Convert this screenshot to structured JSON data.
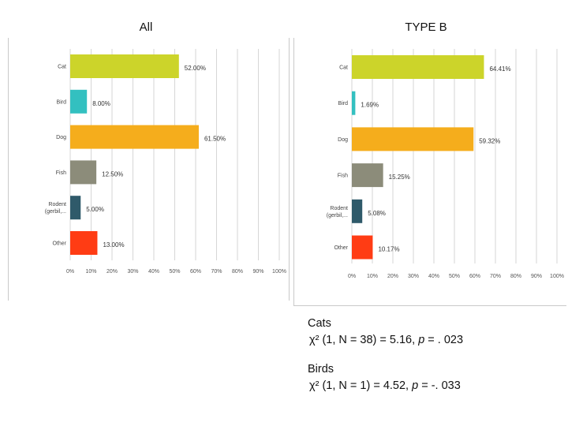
{
  "chart_data": [
    {
      "type": "bar",
      "orientation": "horizontal",
      "title": "All",
      "categories": [
        "Cat",
        "Bird",
        "Dog",
        "Fish",
        "Rodent (gerbil,...",
        "Other"
      ],
      "values": [
        52.0,
        8.0,
        61.5,
        12.5,
        5.0,
        13.0
      ],
      "value_labels": [
        "52.00%",
        "8.00%",
        "61.50%",
        "12.50%",
        "5.00%",
        "13.00%"
      ],
      "colors": [
        "#ccd42a",
        "#33c0c0",
        "#f5ad1c",
        "#8c8c7a",
        "#2f5a6a",
        "#ff3c14"
      ],
      "xlim": [
        0,
        100
      ],
      "xticks": [
        "0%",
        "10%",
        "20%",
        "30%",
        "40%",
        "50%",
        "60%",
        "70%",
        "80%",
        "90%",
        "100%"
      ],
      "grid": true
    },
    {
      "type": "bar",
      "orientation": "horizontal",
      "title": "TYPE B",
      "categories": [
        "Cat",
        "Bird",
        "Dog",
        "Fish",
        "Rodent (gerbil,...",
        "Other"
      ],
      "values": [
        64.41,
        1.69,
        59.32,
        15.25,
        5.08,
        10.17
      ],
      "value_labels": [
        "64.41%",
        "1.69%",
        "59.32%",
        "15.25%",
        "5.08%",
        "10.17%"
      ],
      "colors": [
        "#ccd42a",
        "#33c0c0",
        "#f5ad1c",
        "#8c8c7a",
        "#2f5a6a",
        "#ff3c14"
      ],
      "xlim": [
        0,
        100
      ],
      "xticks": [
        "0%",
        "10%",
        "20%",
        "30%",
        "40%",
        "50%",
        "60%",
        "70%",
        "80%",
        "90%",
        "100%"
      ],
      "grid": true
    }
  ],
  "stats": {
    "cats_label": "Cats",
    "cats_prefix": "χ² (1, N = 38) = 5.16, ",
    "cats_p": "p",
    "cats_suffix": " = . 023",
    "birds_label": "Birds",
    "birds_prefix": "χ²  (1, N = 1) = 4.52, ",
    "birds_p": "p",
    "birds_suffix": " = -. 033"
  }
}
